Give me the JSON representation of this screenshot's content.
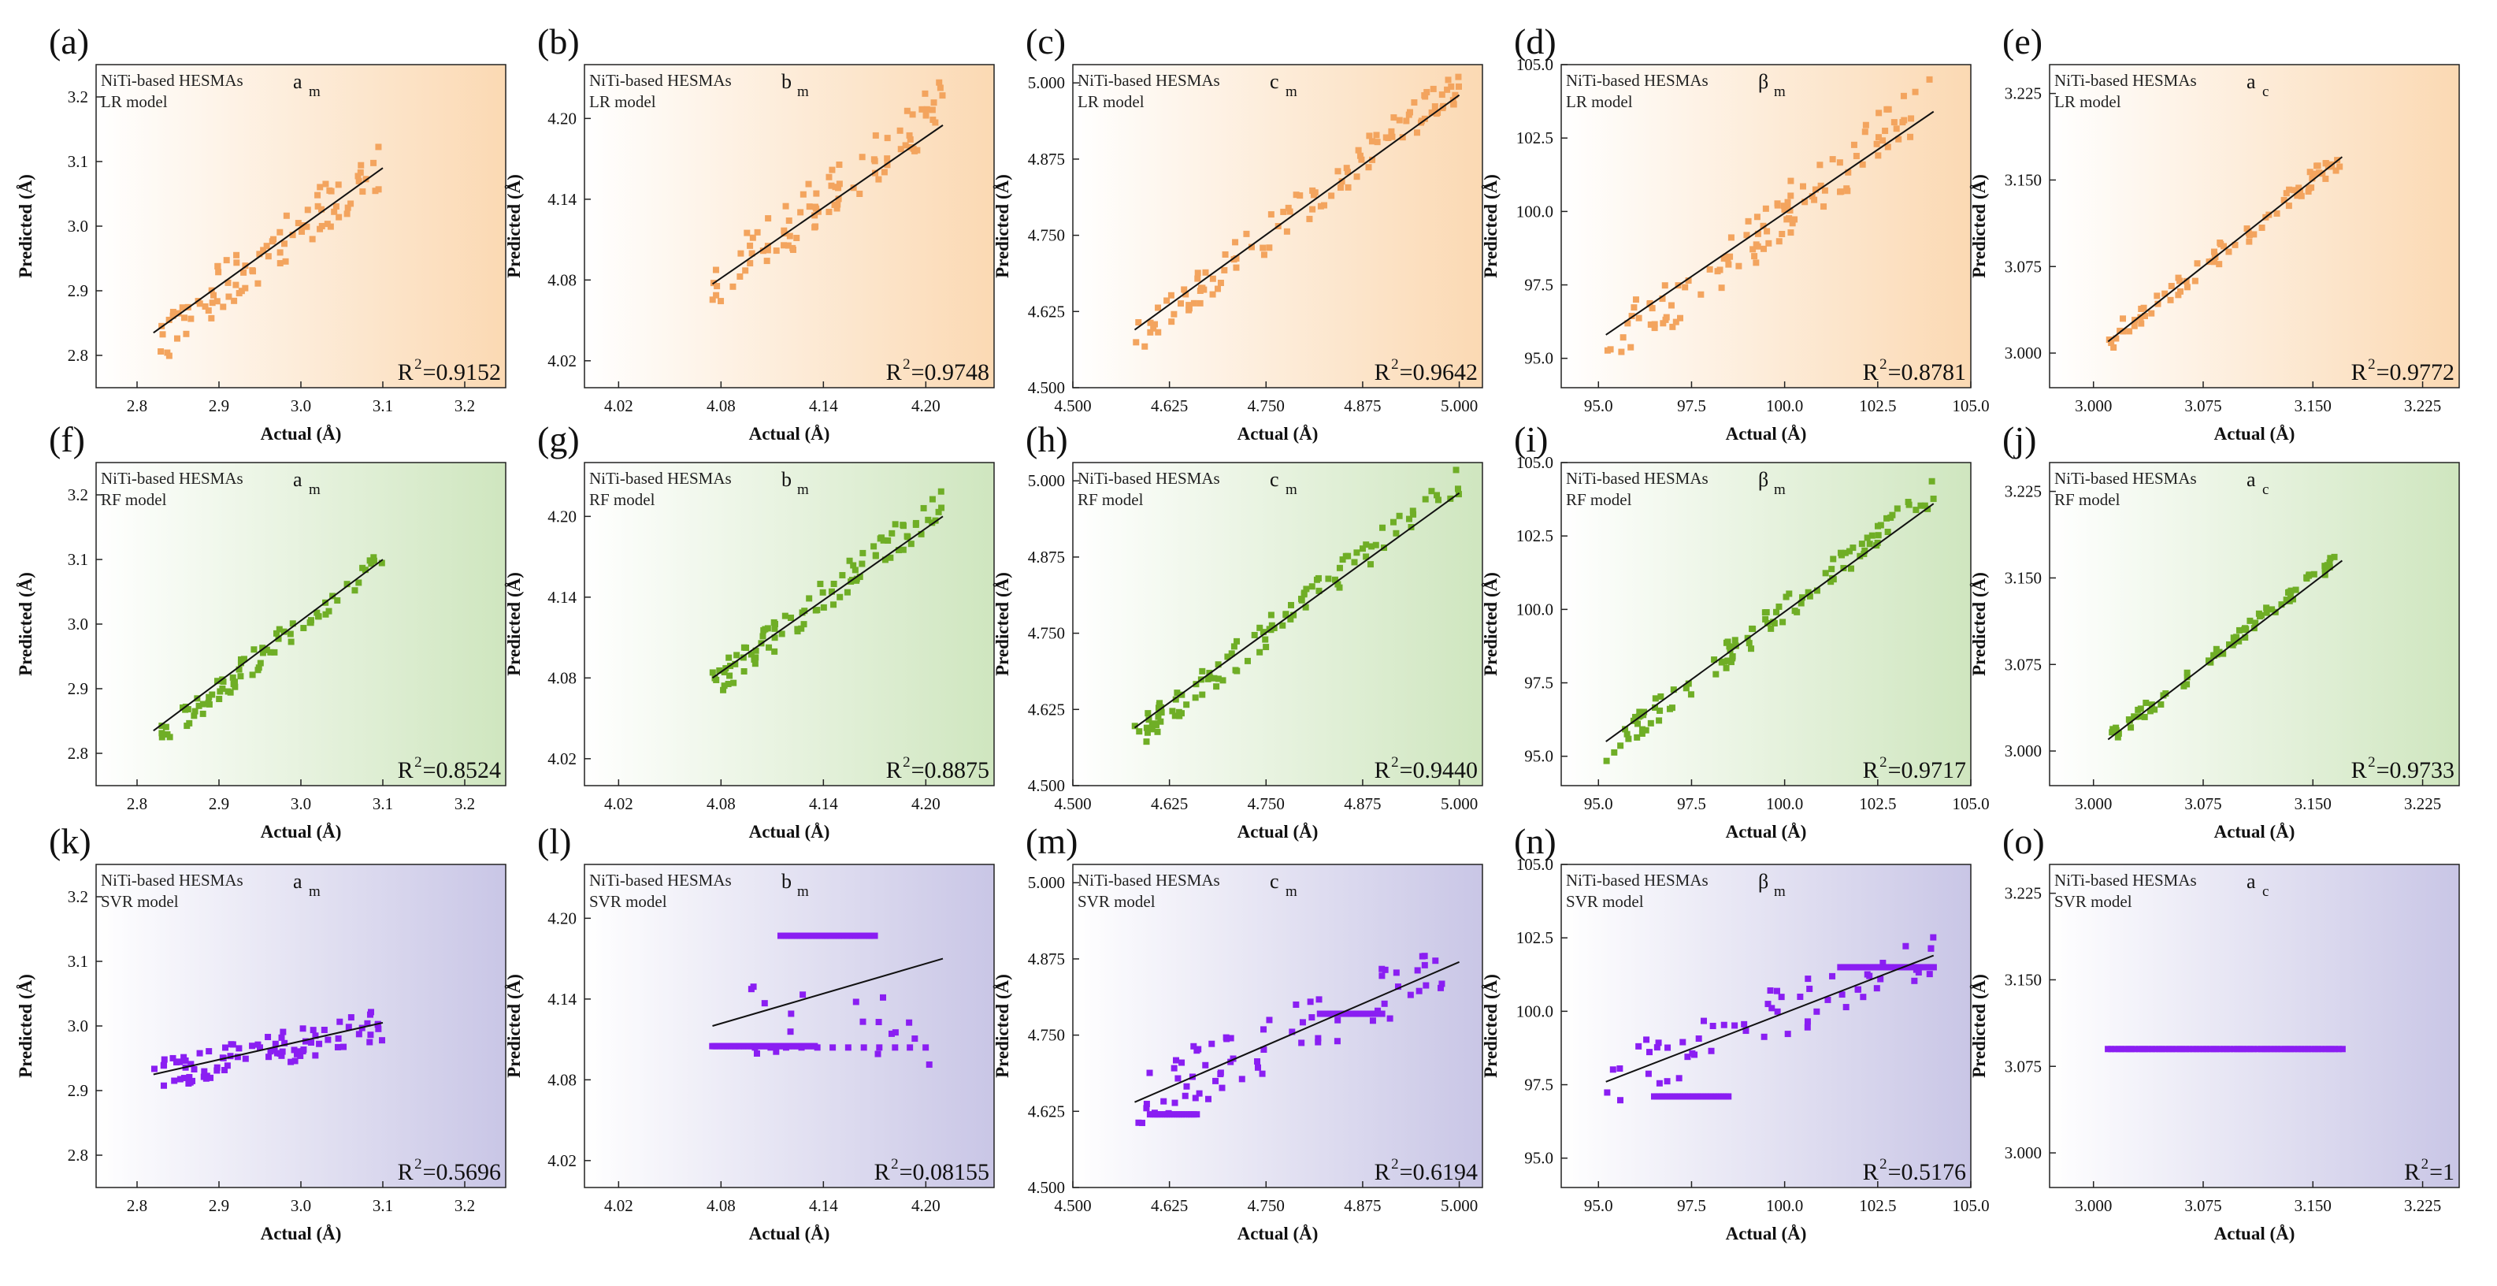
{
  "figure": {
    "common": {
      "dataset_label": "NiTi-based HESMAs",
      "xlabel": "Actual (Å)",
      "ylabel": "Predicted (Å)"
    },
    "colors": {
      "LR": "#f3a45e",
      "RF": "#6fae26",
      "SVR": "#8a1ef2",
      "LR_bg": "#fbd9b3",
      "RF_bg": "#cfe6bf",
      "SVR_bg": "#c9c6e6",
      "fit_line": "#111111"
    }
  },
  "chart_data": [
    {
      "type": "scatter",
      "panel": "(a)",
      "model": "LR model",
      "param_main": "a",
      "param_sub": "m",
      "r2_prefix": "R",
      "r2_value": "=0.9152",
      "xlim": [
        2.75,
        3.25
      ],
      "ylim": [
        2.75,
        3.25
      ],
      "xticks": [
        "2.8",
        "2.9",
        "3.0",
        "3.1",
        "3.2"
      ],
      "yticks": [
        "2.8",
        "2.9",
        "3.0",
        "3.1",
        "3.2"
      ],
      "fit": [
        [
          2.82,
          2.835
        ],
        [
          3.1,
          3.09
        ]
      ],
      "cluster": {
        "xmin": 2.82,
        "xmax": 3.1,
        "spread": 0.04,
        "n": 90,
        "seed": 11
      }
    },
    {
      "type": "scatter",
      "panel": "(b)",
      "model": "LR model",
      "param_main": "b",
      "param_sub": "m",
      "r2_prefix": "R",
      "r2_value": "=0.9748",
      "xlim": [
        4.0,
        4.24
      ],
      "ylim": [
        4.0,
        4.24
      ],
      "xticks": [
        "4.02",
        "4.08",
        "4.14",
        "4.20"
      ],
      "yticks": [
        "4.02",
        "4.08",
        "4.14",
        "4.20"
      ],
      "fit": [
        [
          4.075,
          4.077
        ],
        [
          4.21,
          4.195
        ]
      ],
      "cluster": {
        "xmin": 4.075,
        "xmax": 4.21,
        "spread": 0.02,
        "n": 90,
        "seed": 12
      }
    },
    {
      "type": "scatter",
      "panel": "(c)",
      "model": "LR model",
      "param_main": "c",
      "param_sub": "m",
      "r2_prefix": "R",
      "r2_value": "=0.9642",
      "xlim": [
        4.5,
        5.03
      ],
      "ylim": [
        4.5,
        5.03
      ],
      "xticks": [
        "4.500",
        "4.625",
        "4.750",
        "4.875",
        "5.000"
      ],
      "yticks": [
        "4.500",
        "4.625",
        "4.750",
        "4.875",
        "5.000"
      ],
      "fit": [
        [
          4.58,
          4.595
        ],
        [
          5.0,
          4.98
        ]
      ],
      "cluster": {
        "xmin": 4.58,
        "xmax": 5.0,
        "spread": 0.03,
        "n": 110,
        "seed": 13
      }
    },
    {
      "type": "scatter",
      "panel": "(d)",
      "model": "LR model",
      "param_main": "β",
      "param_sub": "m",
      "r2_prefix": "R",
      "r2_value": "=0.8781",
      "xlim": [
        94,
        105
      ],
      "ylim": [
        94,
        105
      ],
      "xticks": [
        "95.0",
        "97.5",
        "100.0",
        "102.5",
        "105.0"
      ],
      "yticks": [
        "95.0",
        "97.5",
        "100.0",
        "102.5",
        "105.0"
      ],
      "fit": [
        [
          95.2,
          95.8
        ],
        [
          104,
          103.4
        ]
      ],
      "cluster": {
        "xmin": 95.2,
        "xmax": 104,
        "spread": 1.0,
        "n": 110,
        "seed": 14
      }
    },
    {
      "type": "scatter",
      "panel": "(e)",
      "model": "LR model",
      "param_main": "a",
      "param_sub": "c",
      "r2_prefix": "R",
      "r2_value": "=0.9772",
      "xlim": [
        2.97,
        3.25
      ],
      "ylim": [
        2.97,
        3.25
      ],
      "xticks": [
        "3.000",
        "3.075",
        "3.150",
        "3.225"
      ],
      "yticks": [
        "3.000",
        "3.075",
        "3.150",
        "3.225"
      ],
      "fit": [
        [
          3.01,
          3.01
        ],
        [
          3.17,
          3.17
        ]
      ],
      "cluster": {
        "xmin": 3.01,
        "xmax": 3.17,
        "spread": 0.01,
        "n": 80,
        "seed": 15
      }
    },
    {
      "type": "scatter",
      "panel": "(f)",
      "model": "RF model",
      "param_main": "a",
      "param_sub": "m",
      "r2_prefix": "R",
      "r2_value": "=0.8524",
      "xlim": [
        2.75,
        3.25
      ],
      "ylim": [
        2.75,
        3.25
      ],
      "xticks": [
        "2.8",
        "2.9",
        "3.0",
        "3.1",
        "3.2"
      ],
      "yticks": [
        "2.8",
        "2.9",
        "3.0",
        "3.1",
        "3.2"
      ],
      "fit": [
        [
          2.82,
          2.835
        ],
        [
          3.1,
          3.1
        ]
      ],
      "cluster": {
        "xmin": 2.82,
        "xmax": 3.1,
        "spread": 0.02,
        "n": 80,
        "seed": 21
      }
    },
    {
      "type": "scatter",
      "panel": "(g)",
      "model": "RF model",
      "param_main": "b",
      "param_sub": "m",
      "r2_prefix": "R",
      "r2_value": "=0.8875",
      "xlim": [
        4.0,
        4.24
      ],
      "ylim": [
        4.0,
        4.24
      ],
      "xticks": [
        "4.02",
        "4.08",
        "4.14",
        "4.20"
      ],
      "yticks": [
        "4.02",
        "4.08",
        "4.14",
        "4.20"
      ],
      "fit": [
        [
          4.075,
          4.08
        ],
        [
          4.21,
          4.2
        ]
      ],
      "cluster": {
        "xmin": 4.075,
        "xmax": 4.21,
        "spread": 0.012,
        "n": 95,
        "seed": 22
      }
    },
    {
      "type": "scatter",
      "panel": "(h)",
      "model": "RF model",
      "param_main": "c",
      "param_sub": "m",
      "r2_prefix": "R",
      "r2_value": "=0.9440",
      "xlim": [
        4.5,
        5.03
      ],
      "ylim": [
        4.5,
        5.03
      ],
      "xticks": [
        "4.500",
        "4.625",
        "4.750",
        "4.875",
        "5.000"
      ],
      "yticks": [
        "4.500",
        "4.625",
        "4.750",
        "4.875",
        "5.000"
      ],
      "fit": [
        [
          4.58,
          4.595
        ],
        [
          5.0,
          4.98
        ]
      ],
      "cluster": {
        "xmin": 4.58,
        "xmax": 5.0,
        "spread": 0.025,
        "n": 110,
        "seed": 23
      }
    },
    {
      "type": "scatter",
      "panel": "(i)",
      "model": "RF model",
      "param_main": "β",
      "param_sub": "m",
      "r2_prefix": "R",
      "r2_value": "=0.9717",
      "xlim": [
        94,
        105
      ],
      "ylim": [
        94,
        105
      ],
      "xticks": [
        "95.0",
        "97.5",
        "100.0",
        "102.5",
        "105.0"
      ],
      "yticks": [
        "95.0",
        "97.5",
        "100.0",
        "102.5",
        "105.0"
      ],
      "fit": [
        [
          95.2,
          95.5
        ],
        [
          104,
          103.6
        ]
      ],
      "cluster": {
        "xmin": 95.2,
        "xmax": 104,
        "spread": 0.45,
        "n": 110,
        "seed": 24
      }
    },
    {
      "type": "scatter",
      "panel": "(j)",
      "model": "RF model",
      "param_main": "a",
      "param_sub": "c",
      "r2_prefix": "R",
      "r2_value": "=0.9733",
      "xlim": [
        2.97,
        3.25
      ],
      "ylim": [
        2.97,
        3.25
      ],
      "xticks": [
        "3.000",
        "3.075",
        "3.150",
        "3.225"
      ],
      "yticks": [
        "3.000",
        "3.075",
        "3.150",
        "3.225"
      ],
      "fit": [
        [
          3.01,
          3.01
        ],
        [
          3.17,
          3.165
        ]
      ],
      "cluster": {
        "xmin": 3.01,
        "xmax": 3.17,
        "spread": 0.006,
        "n": 80,
        "seed": 25
      }
    },
    {
      "type": "scatter",
      "panel": "(k)",
      "model": "SVR model",
      "param_main": "a",
      "param_sub": "m",
      "r2_prefix": "R",
      "r2_value": "=0.5696",
      "label_text": "NiTi-based HESMAs",
      "xlim": [
        2.75,
        3.25
      ],
      "ylim": [
        2.75,
        3.25
      ],
      "xticks": [
        "2.8",
        "2.9",
        "3.0",
        "3.1",
        "3.2"
      ],
      "yticks": [
        "2.8",
        "2.9",
        "3.0",
        "3.1",
        "3.2"
      ],
      "fit": [
        [
          2.82,
          2.925
        ],
        [
          3.1,
          3.005
        ]
      ],
      "cluster": {
        "xmin": 2.82,
        "xmax": 3.1,
        "slope": 0.29,
        "base": 2.92,
        "spread": 0.025,
        "n": 90,
        "seed": 31
      }
    },
    {
      "type": "scatter",
      "panel": "(l)",
      "model": "SVR model",
      "param_main": "b",
      "param_sub": "m",
      "r2_prefix": "R",
      "r2_value": "=0.08155",
      "xlim": [
        4.0,
        4.24
      ],
      "ylim": [
        4.0,
        4.24
      ],
      "xticks": [
        "4.02",
        "4.08",
        "4.14",
        "4.20"
      ],
      "yticks": [
        "4.02",
        "4.08",
        "4.14",
        "4.20"
      ],
      "fit": [
        [
          4.075,
          4.12
        ],
        [
          4.21,
          4.17
        ]
      ],
      "bands": [
        {
          "xmin": 4.075,
          "xmax": 4.135,
          "y": 4.105,
          "n": 55
        },
        {
          "xmin": 4.115,
          "xmax": 4.17,
          "y": 4.187,
          "n": 35
        },
        {
          "xmin": 4.1,
          "xmax": 4.2,
          "y": 4.104,
          "n": 12
        }
      ],
      "cluster": {
        "xmin": 4.08,
        "xmax": 4.21,
        "slope": 0,
        "base": 4.12,
        "spread": 0.03,
        "n": 18,
        "seed": 32
      }
    },
    {
      "type": "scatter",
      "panel": "(m)",
      "model": "SVR model",
      "param_main": "c",
      "param_sub": "m",
      "r2_prefix": "R",
      "r2_value": "=0.6194",
      "xlim": [
        4.5,
        5.03
      ],
      "ylim": [
        4.5,
        5.03
      ],
      "xticks": [
        "4.500",
        "4.625",
        "4.750",
        "4.875",
        "5.000"
      ],
      "yticks": [
        "4.500",
        "4.625",
        "4.750",
        "4.875",
        "5.000"
      ],
      "fit": [
        [
          4.58,
          4.64
        ],
        [
          5.0,
          4.87
        ]
      ],
      "bands": [
        {
          "xmin": 4.6,
          "xmax": 4.66,
          "y": 4.62,
          "n": 20
        },
        {
          "xmin": 4.82,
          "xmax": 4.9,
          "y": 4.785,
          "n": 20
        }
      ],
      "cluster": {
        "xmin": 4.58,
        "xmax": 5.0,
        "slope": 0.55,
        "base": 4.64,
        "spread": 0.05,
        "n": 70,
        "seed": 33
      }
    },
    {
      "type": "scatter",
      "panel": "(n)",
      "model": "SVR model",
      "param_main": "β",
      "param_sub": "m",
      "r2_prefix": "R",
      "r2_value": "=0.5176",
      "xlim": [
        94,
        105
      ],
      "ylim": [
        94,
        105
      ],
      "xticks": [
        "95.0",
        "97.5",
        "100.0",
        "102.5",
        "105.0"
      ],
      "yticks": [
        "95.0",
        "97.5",
        "100.0",
        "102.5",
        "105.0"
      ],
      "fit": [
        [
          95.2,
          97.6
        ],
        [
          104,
          101.9
        ]
      ],
      "bands": [
        {
          "xmin": 96.5,
          "xmax": 98.5,
          "y": 97.1,
          "n": 30
        },
        {
          "xmin": 101.5,
          "xmax": 104,
          "y": 101.5,
          "n": 30
        }
      ],
      "cluster": {
        "xmin": 95.2,
        "xmax": 104,
        "slope": 0.5,
        "base": 97.6,
        "spread": 0.9,
        "n": 60,
        "seed": 34
      }
    },
    {
      "type": "scatter",
      "panel": "(o)",
      "model": "SVR model",
      "param_main": "a",
      "param_sub": "c",
      "r2_prefix": "R",
      "r2_value": "=1",
      "xlim": [
        2.97,
        3.25
      ],
      "ylim": [
        2.97,
        3.25
      ],
      "xticks": [
        "3.000",
        "3.075",
        "3.150",
        "3.225"
      ],
      "yticks": [
        "3.000",
        "3.075",
        "3.150",
        "3.225"
      ],
      "fit": null,
      "bands": [
        {
          "xmin": 3.01,
          "xmax": 3.17,
          "y": 3.09,
          "n": 70
        }
      ],
      "cluster": null
    }
  ]
}
